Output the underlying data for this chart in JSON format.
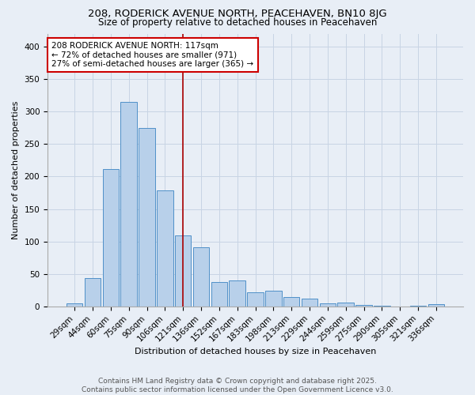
{
  "title": "208, RODERICK AVENUE NORTH, PEACEHAVEN, BN10 8JG",
  "subtitle": "Size of property relative to detached houses in Peacehaven",
  "xlabel": "Distribution of detached houses by size in Peacehaven",
  "ylabel": "Number of detached properties",
  "bar_labels": [
    "29sqm",
    "44sqm",
    "60sqm",
    "75sqm",
    "90sqm",
    "106sqm",
    "121sqm",
    "136sqm",
    "152sqm",
    "167sqm",
    "183sqm",
    "198sqm",
    "213sqm",
    "229sqm",
    "244sqm",
    "259sqm",
    "275sqm",
    "290sqm",
    "305sqm",
    "321sqm",
    "336sqm"
  ],
  "bar_values": [
    5,
    44,
    211,
    315,
    275,
    179,
    109,
    91,
    37,
    40,
    22,
    24,
    14,
    12,
    5,
    6,
    2,
    1,
    0,
    1,
    3
  ],
  "bar_color": "#b8d0ea",
  "bar_edge_color": "#5090c8",
  "grid_color": "#c8d4e4",
  "background_color": "#e8eef6",
  "vline_color": "#aa0000",
  "annotation_text": "208 RODERICK AVENUE NORTH: 117sqm\n← 72% of detached houses are smaller (971)\n27% of semi-detached houses are larger (365) →",
  "annotation_box_color": "#ffffff",
  "annotation_box_edge": "#cc0000",
  "ylim": [
    0,
    420
  ],
  "yticks": [
    0,
    50,
    100,
    150,
    200,
    250,
    300,
    350,
    400
  ],
  "footer_text": "Contains HM Land Registry data © Crown copyright and database right 2025.\nContains public sector information licensed under the Open Government Licence v3.0.",
  "title_fontsize": 9.5,
  "subtitle_fontsize": 8.5,
  "xlabel_fontsize": 8,
  "ylabel_fontsize": 8,
  "tick_fontsize": 7.5,
  "annotation_fontsize": 7.5,
  "footer_fontsize": 6.5,
  "vline_x_index": 6.0
}
